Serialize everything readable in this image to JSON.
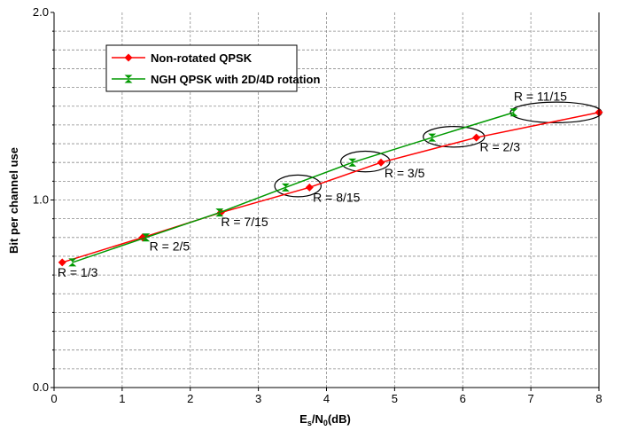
{
  "chart_data": {
    "type": "line",
    "xlabel": {
      "main": "E",
      "sub1": "s",
      "mid": "/N",
      "sub2": "0",
      "tail": "(dB)"
    },
    "ylabel": "Bit per channel use",
    "xlim": [
      0,
      8
    ],
    "ylim": [
      0,
      2
    ],
    "xticks": [
      "0",
      "1",
      "2",
      "3",
      "4",
      "5",
      "6",
      "7",
      "8"
    ],
    "yticks": [
      {
        "value": 0,
        "label": "0.0"
      },
      {
        "value": 1,
        "label": "1.0"
      },
      {
        "value": 2,
        "label": "2.0"
      }
    ],
    "grid": "dashed",
    "legend": {
      "placement": "top-left"
    },
    "series": [
      {
        "name": "Non-rotated QPSK",
        "color": "#ff0000",
        "marker": "diamond",
        "x": [
          0.12,
          1.3,
          2.45,
          3.75,
          4.8,
          6.2,
          8.0
        ],
        "y": [
          0.667,
          0.8,
          0.933,
          1.067,
          1.2,
          1.333,
          1.467
        ]
      },
      {
        "name": "NGH QPSK with 2D/4D rotation",
        "color": "#009900",
        "marker": "hourglass",
        "x": [
          0.27,
          1.35,
          2.43,
          3.4,
          4.38,
          5.55,
          6.75
        ],
        "y": [
          0.667,
          0.8,
          0.933,
          1.067,
          1.2,
          1.333,
          1.467
        ]
      }
    ],
    "annotations": [
      {
        "text": "R = 1/3",
        "x": 0.05,
        "y": 0.59
      },
      {
        "text": "R = 2/5",
        "x": 1.4,
        "y": 0.73
      },
      {
        "text": "R = 7/15",
        "x": 2.45,
        "y": 0.86
      },
      {
        "text": "R = 8/15",
        "x": 3.8,
        "y": 0.99
      },
      {
        "text": "R = 3/5",
        "x": 4.85,
        "y": 1.12
      },
      {
        "text": "R = 2/3",
        "x": 6.25,
        "y": 1.26
      },
      {
        "text": "R = 11/15",
        "x": 6.75,
        "y": 1.53
      }
    ],
    "ellipses": [
      {
        "cx": 3.58,
        "cy": 1.075,
        "rx": 0.34,
        "ry": 0.058
      },
      {
        "cx": 4.57,
        "cy": 1.205,
        "rx": 0.36,
        "ry": 0.055
      },
      {
        "cx": 5.87,
        "cy": 1.337,
        "rx": 0.45,
        "ry": 0.055
      },
      {
        "cx": 7.37,
        "cy": 1.467,
        "rx": 0.67,
        "ry": 0.055
      }
    ]
  }
}
